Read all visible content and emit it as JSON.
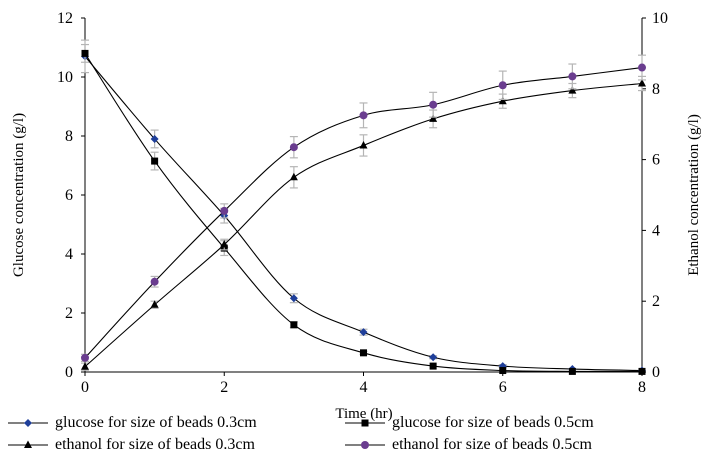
{
  "chart_data": {
    "type": "line",
    "x": [
      0,
      1,
      2,
      3,
      4,
      5,
      6,
      7,
      8
    ],
    "xlabel": "Time (hr)",
    "xlim": [
      0,
      8
    ],
    "xticks": [
      "0",
      "2",
      "4",
      "6",
      "8"
    ],
    "ylabel_left": "Glucose concentration (g/l)",
    "ylim_left": [
      0,
      12
    ],
    "yticks_left": [
      "0",
      "2",
      "4",
      "6",
      "8",
      "10",
      "12"
    ],
    "ylabel_right": "Ethanol concentration (g/l)",
    "ylim_right": [
      0,
      10
    ],
    "yticks_right": [
      "0",
      "2",
      "4",
      "6",
      "8",
      "10"
    ],
    "grid": false,
    "legend_position": "bottom",
    "series": [
      {
        "name": "glucose for size of beads 0.3cm",
        "axis": "left",
        "marker": "diamond",
        "color": "#1f3f9a",
        "values": [
          10.7,
          7.9,
          5.3,
          2.5,
          1.35,
          0.5,
          0.2,
          0.1,
          0.05
        ],
        "errors": [
          0.55,
          0.3,
          0.25,
          0.15,
          0.1,
          0.05,
          0.05,
          0.02,
          0.02
        ]
      },
      {
        "name": "glucose for size of beads 0.5cm",
        "axis": "left",
        "marker": "square",
        "color": "#000000",
        "values": [
          10.8,
          7.15,
          4.2,
          1.6,
          0.65,
          0.2,
          0.05,
          0.02,
          0.02
        ],
        "errors": [
          0.3,
          0.3,
          0.25,
          0.1,
          0.05,
          0.02,
          0.02,
          0.02,
          0.02
        ]
      },
      {
        "name": "ethanol for size of beads 0.3cm",
        "axis": "right",
        "marker": "triangle",
        "color": "#000000",
        "values": [
          0.15,
          1.9,
          3.6,
          5.5,
          6.4,
          7.15,
          7.65,
          7.95,
          8.15
        ],
        "errors": [
          0.1,
          0.1,
          0.15,
          0.3,
          0.3,
          0.25,
          0.2,
          0.2,
          0.2
        ]
      },
      {
        "name": "ethanol for size of beads 0.5cm",
        "axis": "right",
        "marker": "circle",
        "color": "#6a3d8f",
        "values": [
          0.4,
          2.55,
          4.55,
          6.35,
          7.25,
          7.55,
          8.1,
          8.35,
          8.6
        ],
        "errors": [
          0.1,
          0.15,
          0.2,
          0.3,
          0.35,
          0.35,
          0.4,
          0.35,
          0.35
        ]
      }
    ]
  }
}
